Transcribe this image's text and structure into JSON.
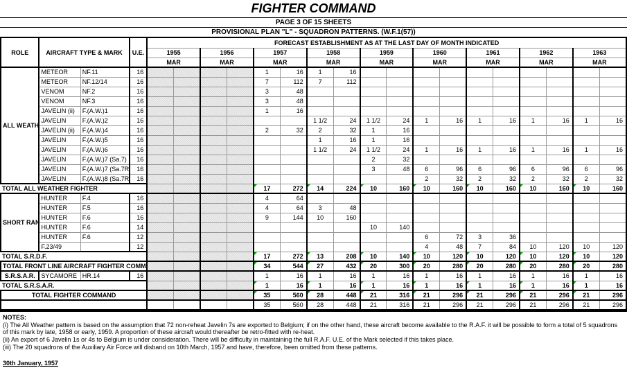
{
  "title": "FIGHTER COMMAND",
  "page_sub": "PAGE 3 OF 15 SHEETS",
  "plan_sub": "PROVISIONAL PLAN \"L\" - SQUADRON PATTERNS. (W.F.1(57))",
  "forecast_hdr": "FORECAST ESTABLISHMENT AS AT THE LAST DAY OF MONTH INDICATED",
  "col_role": "ROLE",
  "col_type": "AIRCRAFT TYPE & MARK",
  "col_ue": "U.E.",
  "years": [
    "1955",
    "1956",
    "1957",
    "1958",
    "1959",
    "1960",
    "1961",
    "1962",
    "1963"
  ],
  "month": "MAR",
  "roles": {
    "awf": "ALL WEATHER FIGHTER (i)",
    "srdf": "SHORT RANGE DAY FIGHTER",
    "srsar": "S.R.S.A.R."
  },
  "rows_awf": [
    {
      "type": "METEOR",
      "mark": "NF.11",
      "ue": "16",
      "v": [
        [
          "",
          ""
        ],
        [
          "",
          ""
        ],
        [
          "1",
          "16"
        ],
        [
          "1",
          "16"
        ],
        [
          "",
          ""
        ],
        [
          "",
          ""
        ],
        [
          "",
          ""
        ],
        [
          "",
          ""
        ],
        [
          "",
          ""
        ]
      ]
    },
    {
      "type": "METEOR",
      "mark": "NF.12/14",
      "ue": "16",
      "v": [
        [
          "",
          ""
        ],
        [
          "",
          ""
        ],
        [
          "7",
          "112"
        ],
        [
          "7",
          "112"
        ],
        [
          "",
          ""
        ],
        [
          "",
          ""
        ],
        [
          "",
          ""
        ],
        [
          "",
          ""
        ],
        [
          "",
          ""
        ]
      ]
    },
    {
      "type": "VENOM",
      "mark": "NF.2",
      "ue": "16",
      "v": [
        [
          "",
          ""
        ],
        [
          "",
          ""
        ],
        [
          "3",
          "48"
        ],
        [
          "",
          ""
        ],
        [
          "",
          ""
        ],
        [
          "",
          ""
        ],
        [
          "",
          ""
        ],
        [
          "",
          ""
        ],
        [
          "",
          ""
        ]
      ]
    },
    {
      "type": "VENOM",
      "mark": "NF.3",
      "ue": "16",
      "v": [
        [
          "",
          ""
        ],
        [
          "",
          ""
        ],
        [
          "3",
          "48"
        ],
        [
          "",
          ""
        ],
        [
          "",
          ""
        ],
        [
          "",
          ""
        ],
        [
          "",
          ""
        ],
        [
          "",
          ""
        ],
        [
          "",
          ""
        ]
      ]
    },
    {
      "type": "JAVELIN (ii)",
      "mark": "F.(A.W.)1",
      "ue": "16",
      "v": [
        [
          "",
          ""
        ],
        [
          "",
          ""
        ],
        [
          "1",
          "16"
        ],
        [
          "",
          ""
        ],
        [
          "",
          ""
        ],
        [
          "",
          ""
        ],
        [
          "",
          ""
        ],
        [
          "",
          ""
        ],
        [
          "",
          ""
        ]
      ]
    },
    {
      "type": "JAVELIN",
      "mark": "F.(A.W.)2",
      "ue": "16",
      "v": [
        [
          "",
          ""
        ],
        [
          "",
          ""
        ],
        [
          "",
          ""
        ],
        [
          "1 1/2",
          "24"
        ],
        [
          "1 1/2",
          "24"
        ],
        [
          "1",
          "16"
        ],
        [
          "1",
          "16"
        ],
        [
          "1",
          "16"
        ],
        [
          "1",
          "16"
        ]
      ]
    },
    {
      "type": "JAVELIN (ii)",
      "mark": "F.(A.W.)4",
      "ue": "16",
      "v": [
        [
          "",
          ""
        ],
        [
          "",
          ""
        ],
        [
          "2",
          "32"
        ],
        [
          "2",
          "32"
        ],
        [
          "1",
          "16"
        ],
        [
          "",
          ""
        ],
        [
          "",
          ""
        ],
        [
          "",
          ""
        ],
        [
          "",
          ""
        ]
      ]
    },
    {
      "type": "JAVELIN",
      "mark": "F.(A.W.)5",
      "ue": "16",
      "v": [
        [
          "",
          ""
        ],
        [
          "",
          ""
        ],
        [
          "",
          ""
        ],
        [
          "1",
          "16"
        ],
        [
          "1",
          "16"
        ],
        [
          "",
          ""
        ],
        [
          "",
          ""
        ],
        [
          "",
          ""
        ],
        [
          "",
          ""
        ]
      ]
    },
    {
      "type": "JAVELIN",
      "mark": "F.(A.W.)6",
      "ue": "16",
      "v": [
        [
          "",
          ""
        ],
        [
          "",
          ""
        ],
        [
          "",
          ""
        ],
        [
          "1 1/2",
          "24"
        ],
        [
          "1 1/2",
          "24"
        ],
        [
          "1",
          "16"
        ],
        [
          "1",
          "16"
        ],
        [
          "1",
          "16"
        ],
        [
          "1",
          "16"
        ]
      ]
    },
    {
      "type": "JAVELIN",
      "mark": "F.(A.W.)7 (Sa.7)",
      "ue": "16",
      "v": [
        [
          "",
          ""
        ],
        [
          "",
          ""
        ],
        [
          "",
          ""
        ],
        [
          "",
          ""
        ],
        [
          "2",
          "32"
        ],
        [
          "",
          ""
        ],
        [
          "",
          ""
        ],
        [
          "",
          ""
        ],
        [
          "",
          ""
        ]
      ]
    },
    {
      "type": "JAVELIN",
      "mark": "F.(A.W.)7 (Sa.7R)",
      "ue": "16",
      "v": [
        [
          "",
          ""
        ],
        [
          "",
          ""
        ],
        [
          "",
          ""
        ],
        [
          "",
          ""
        ],
        [
          "3",
          "48"
        ],
        [
          "6",
          "96"
        ],
        [
          "6",
          "96"
        ],
        [
          "6",
          "96"
        ],
        [
          "6",
          "96"
        ]
      ]
    },
    {
      "type": "JAVELIN",
      "mark": "F.(A.W.)8 (Sa.7R)",
      "ue": "16",
      "v": [
        [
          "",
          ""
        ],
        [
          "",
          ""
        ],
        [
          "",
          ""
        ],
        [
          "",
          ""
        ],
        [
          "",
          ""
        ],
        [
          "2",
          "32"
        ],
        [
          "2",
          "32"
        ],
        [
          "2",
          "32"
        ],
        [
          "2",
          "32"
        ]
      ]
    }
  ],
  "tot_awf": {
    "label": "TOTAL ALL WEATHER FIGHTER",
    "v": [
      [
        "",
        ""
      ],
      [
        "",
        ""
      ],
      [
        "17",
        "272"
      ],
      [
        "14",
        "224"
      ],
      [
        "10",
        "160"
      ],
      [
        "10",
        "160"
      ],
      [
        "10",
        "160"
      ],
      [
        "10",
        "160"
      ],
      [
        "10",
        "160"
      ]
    ]
  },
  "rows_srdf": [
    {
      "type": "HUNTER",
      "mark": "F.4",
      "ue": "16",
      "v": [
        [
          "",
          ""
        ],
        [
          "",
          ""
        ],
        [
          "4",
          "64"
        ],
        [
          "",
          ""
        ],
        [
          "",
          ""
        ],
        [
          "",
          ""
        ],
        [
          "",
          ""
        ],
        [
          "",
          ""
        ],
        [
          "",
          ""
        ]
      ]
    },
    {
      "type": "HUNTER",
      "mark": "F.5",
      "ue": "16",
      "v": [
        [
          "",
          ""
        ],
        [
          "",
          ""
        ],
        [
          "4",
          "64"
        ],
        [
          "3",
          "48"
        ],
        [
          "",
          ""
        ],
        [
          "",
          ""
        ],
        [
          "",
          ""
        ],
        [
          "",
          ""
        ],
        [
          "",
          ""
        ]
      ]
    },
    {
      "type": "HUNTER",
      "mark": "F.6",
      "ue": "16",
      "v": [
        [
          "",
          ""
        ],
        [
          "",
          ""
        ],
        [
          "9",
          "144"
        ],
        [
          "10",
          "160"
        ],
        [
          "",
          ""
        ],
        [
          "",
          ""
        ],
        [
          "",
          ""
        ],
        [
          "",
          ""
        ],
        [
          "",
          ""
        ]
      ]
    },
    {
      "type": "HUNTER",
      "mark": "F.6",
      "ue": "14",
      "v": [
        [
          "",
          ""
        ],
        [
          "",
          ""
        ],
        [
          "",
          ""
        ],
        [
          "",
          ""
        ],
        [
          "10",
          "140"
        ],
        [
          "",
          ""
        ],
        [
          "",
          ""
        ],
        [
          "",
          ""
        ],
        [
          "",
          ""
        ]
      ]
    },
    {
      "type": "HUNTER",
      "mark": "F.6",
      "ue": "12",
      "v": [
        [
          "",
          ""
        ],
        [
          "",
          ""
        ],
        [
          "",
          ""
        ],
        [
          "",
          ""
        ],
        [
          "",
          ""
        ],
        [
          "6",
          "72"
        ],
        [
          "3",
          "36"
        ],
        [
          "",
          ""
        ],
        [
          "",
          ""
        ]
      ]
    },
    {
      "type": "F.23/49",
      "mark": "",
      "ue": "12",
      "v": [
        [
          "",
          ""
        ],
        [
          "",
          ""
        ],
        [
          "",
          ""
        ],
        [
          "",
          ""
        ],
        [
          "",
          ""
        ],
        [
          "4",
          "48"
        ],
        [
          "7",
          "84"
        ],
        [
          "10",
          "120"
        ],
        [
          "10",
          "120"
        ]
      ]
    }
  ],
  "tot_srdf": {
    "label": "TOTAL S.R.D.F.",
    "v": [
      [
        "",
        ""
      ],
      [
        "",
        ""
      ],
      [
        "17",
        "272"
      ],
      [
        "13",
        "208"
      ],
      [
        "10",
        "140"
      ],
      [
        "10",
        "120"
      ],
      [
        "10",
        "120"
      ],
      [
        "10",
        "120"
      ],
      [
        "10",
        "120"
      ]
    ]
  },
  "tot_front": {
    "label": "TOTAL FRONT LINE AIRCRAFT FIGHTER COMMAND",
    "v": [
      [
        "",
        ""
      ],
      [
        "",
        ""
      ],
      [
        "34",
        "544"
      ],
      [
        "27",
        "432"
      ],
      [
        "20",
        "300"
      ],
      [
        "20",
        "280"
      ],
      [
        "20",
        "280"
      ],
      [
        "20",
        "280"
      ],
      [
        "20",
        "280"
      ]
    ]
  },
  "rows_srsar": [
    {
      "type": "SYCAMORE",
      "mark": "HR.14",
      "ue": "16",
      "v": [
        [
          "",
          ""
        ],
        [
          "",
          ""
        ],
        [
          "1",
          "16"
        ],
        [
          "1",
          "16"
        ],
        [
          "1",
          "16"
        ],
        [
          "1",
          "16"
        ],
        [
          "1",
          "16"
        ],
        [
          "1",
          "16"
        ],
        [
          "1",
          "16"
        ]
      ]
    }
  ],
  "tot_srsar": {
    "label": "TOTAL S.R.S.A.R.",
    "v": [
      [
        "",
        ""
      ],
      [
        "",
        ""
      ],
      [
        "1",
        "16"
      ],
      [
        "1",
        "16"
      ],
      [
        "1",
        "16"
      ],
      [
        "1",
        "16"
      ],
      [
        "1",
        "16"
      ],
      [
        "1",
        "16"
      ],
      [
        "1",
        "16"
      ]
    ]
  },
  "tot_fc": {
    "label": "TOTAL FIGHTER COMMAND",
    "v": [
      [
        "",
        ""
      ],
      [
        "",
        ""
      ],
      [
        "35",
        "560"
      ],
      [
        "28",
        "448"
      ],
      [
        "21",
        "316"
      ],
      [
        "21",
        "296"
      ],
      [
        "21",
        "296"
      ],
      [
        "21",
        "296"
      ],
      [
        "21",
        "296"
      ]
    ]
  },
  "tot_fc2": {
    "v": [
      [
        "",
        ""
      ],
      [
        "",
        ""
      ],
      [
        "35",
        "560"
      ],
      [
        "28",
        "448"
      ],
      [
        "21",
        "316"
      ],
      [
        "21",
        "296"
      ],
      [
        "21",
        "296"
      ],
      [
        "21",
        "296"
      ],
      [
        "21",
        "296"
      ]
    ]
  },
  "notes_hdr": "NOTES:",
  "notes": [
    "(i) The All Weather pattern is based on the assumption that 72 non-reheat Javelin 7s are exported to Belgium; if on the other hand, these aircraft become available to the R.A.F. it will be possible to form a total of 5 squadrons of this mark by late, 1958 or early, 1959. A proportion of these aircraft would thereafter be retro-fitted with re-heat.",
    "(ii) An export of 6 Javelin 1s or 4s to Belgium is under consideration. There will be difficulty in maintaining the full R.A.F. U.E. of the Mark selected if this takes place.",
    "(iii) The 20 squadrons of the Auxiliary Air Force will disband on 10th March, 1957 and have, therefore, been omitted from these patterns."
  ],
  "date": "30th January, 1957"
}
